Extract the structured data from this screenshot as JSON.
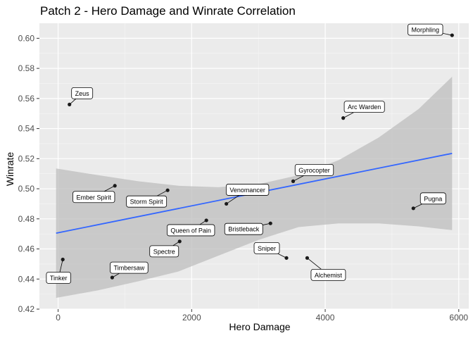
{
  "chart_data": {
    "type": "scatter",
    "title": "Patch 2  - Hero Damage and Winrate Correlation",
    "xlabel": "Hero Damage",
    "ylabel": "Winrate",
    "xlim": [
      -280,
      6150
    ],
    "ylim": [
      0.42,
      0.61
    ],
    "x_ticks": [
      0,
      2000,
      4000,
      6000
    ],
    "y_ticks": [
      0.42,
      0.44,
      0.46,
      0.48,
      0.5,
      0.52,
      0.54,
      0.56,
      0.58,
      0.6
    ],
    "grid": true,
    "background": "#ebebeb",
    "point_color": "#1a1a1a",
    "trend_color": "#3366ff",
    "ribbon_color": "#bdbdbd",
    "points": [
      {
        "name": "Morphling",
        "x": 5900,
        "y": 0.602
      },
      {
        "name": "Zeus",
        "x": 170,
        "y": 0.556
      },
      {
        "name": "Arc Warden",
        "x": 4270,
        "y": 0.547
      },
      {
        "name": "Gyrocopter",
        "x": 3520,
        "y": 0.505
      },
      {
        "name": "Ember Spirit",
        "x": 850,
        "y": 0.502
      },
      {
        "name": "Storm Spirit",
        "x": 1640,
        "y": 0.499
      },
      {
        "name": "Venomancer",
        "x": 2520,
        "y": 0.49
      },
      {
        "name": "Pugna",
        "x": 5320,
        "y": 0.487
      },
      {
        "name": "Queen of Pain",
        "x": 2220,
        "y": 0.479
      },
      {
        "name": "Bristleback",
        "x": 3180,
        "y": 0.477
      },
      {
        "name": "Spectre",
        "x": 1820,
        "y": 0.465
      },
      {
        "name": "Sniper",
        "x": 3420,
        "y": 0.454
      },
      {
        "name": "Alchemist",
        "x": 3730,
        "y": 0.454
      },
      {
        "name": "Tinker",
        "x": 70,
        "y": 0.453
      },
      {
        "name": "Timbersaw",
        "x": 810,
        "y": 0.441
      }
    ],
    "trend": {
      "x": [
        -30,
        5900
      ],
      "y": [
        0.4705,
        0.5235
      ]
    },
    "ribbon": {
      "x": [
        -30,
        600,
        1200,
        1800,
        2400,
        3000,
        3600,
        4200,
        4800,
        5400,
        5900
      ],
      "upper": [
        0.5135,
        0.509,
        0.505,
        0.502,
        0.501,
        0.503,
        0.509,
        0.519,
        0.534,
        0.553,
        0.5745
      ],
      "lower": [
        0.4275,
        0.4325,
        0.4385,
        0.445,
        0.4555,
        0.466,
        0.4745,
        0.477,
        0.477,
        0.475,
        0.4725
      ]
    }
  }
}
